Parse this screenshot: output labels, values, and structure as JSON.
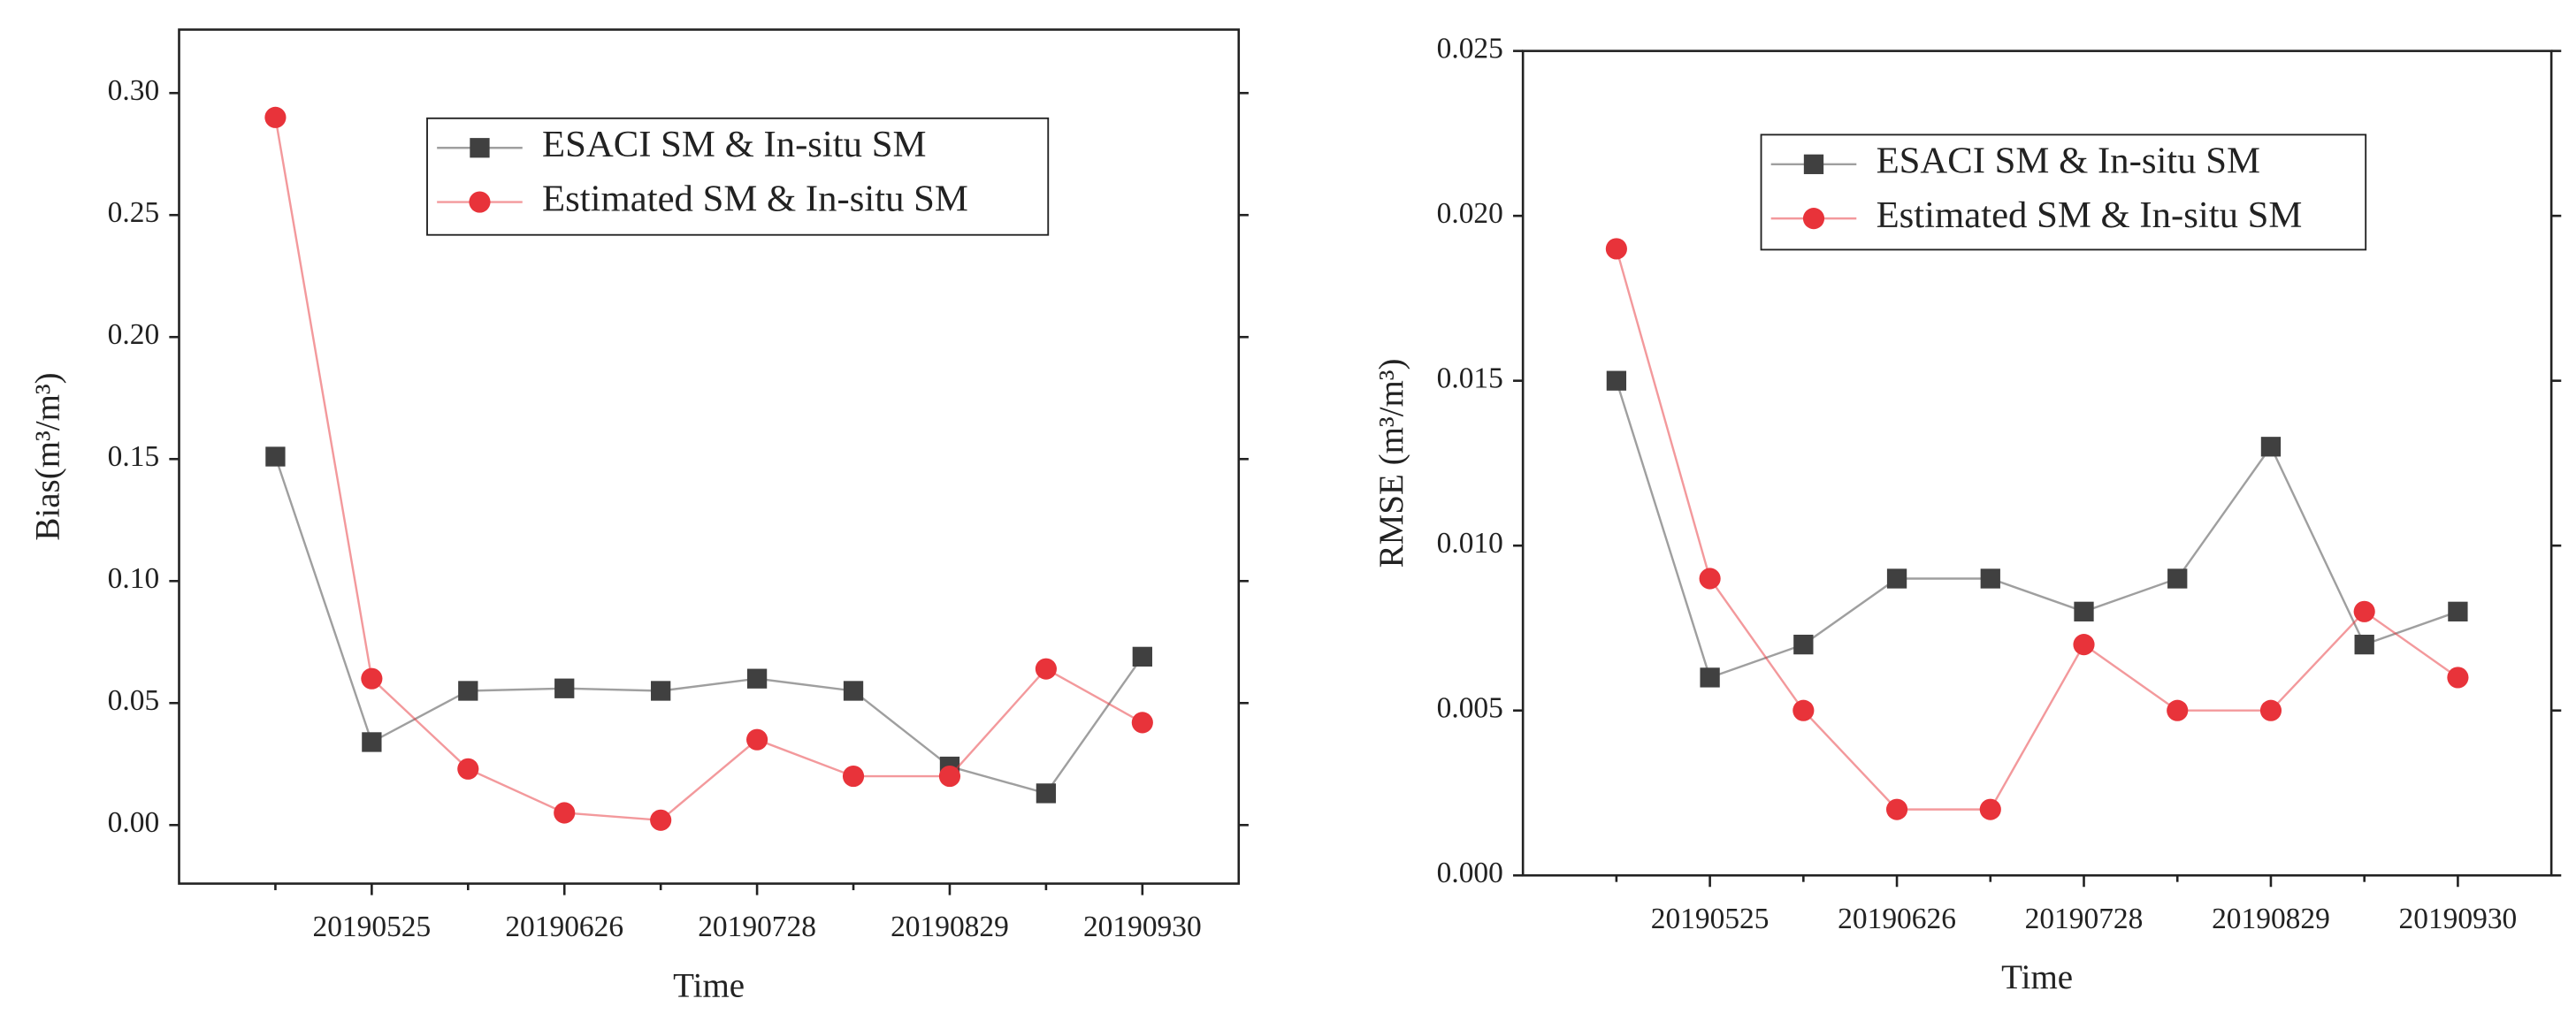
{
  "chart_data": [
    {
      "type": "line",
      "ylabel": "Bias(m³/m³)",
      "xlabel": "Time",
      "categories": [
        null,
        "20190525",
        null,
        "20190626",
        null,
        "20190728",
        null,
        "20190829",
        null,
        "20190930"
      ],
      "series": [
        {
          "name": "ESACI SM & In-situ SM",
          "color": "#404040",
          "marker": "square",
          "values": [
            0.151,
            0.034,
            0.055,
            0.056,
            0.055,
            0.06,
            0.055,
            0.024,
            0.013,
            0.069
          ]
        },
        {
          "name": "Estimated SM & In-situ SM",
          "color": "#e8333a",
          "marker": "circle",
          "values": [
            0.29,
            0.06,
            0.023,
            0.005,
            0.002,
            0.035,
            0.02,
            0.02,
            0.064,
            0.042
          ]
        }
      ],
      "ylim": [
        -0.024,
        0.326
      ],
      "yticks": [
        {
          "value": 0,
          "label": "0.00"
        },
        {
          "value": 0.05,
          "label": "0.05"
        },
        {
          "value": 0.1,
          "label": "0.10"
        },
        {
          "value": 0.15,
          "label": "0.15"
        },
        {
          "value": 0.2,
          "label": "0.20"
        },
        {
          "value": 0.25,
          "label": "0.25"
        },
        {
          "value": 0.3,
          "label": "0.30"
        }
      ],
      "legend": "top"
    },
    {
      "type": "line",
      "ylabel": "RMSE (m³/m³)",
      "xlabel": "Time",
      "categories": [
        null,
        "20190525",
        null,
        "20190626",
        null,
        "20190728",
        null,
        "20190829",
        null,
        "20190930"
      ],
      "series": [
        {
          "name": "ESACI SM & In-situ SM",
          "color": "#404040",
          "marker": "square",
          "values": [
            0.015,
            0.006,
            0.007,
            0.009,
            0.009,
            0.008,
            0.009,
            0.013,
            0.007,
            0.008
          ]
        },
        {
          "name": "Estimated SM & In-situ SM",
          "color": "#e8333a",
          "marker": "circle",
          "values": [
            0.019,
            0.009,
            0.005,
            0.002,
            0.002,
            0.007,
            0.005,
            0.005,
            0.008,
            0.006
          ]
        }
      ],
      "ylim": [
        0,
        0.025
      ],
      "yticks": [
        {
          "value": 0,
          "label": "0.000"
        },
        {
          "value": 0.005,
          "label": "0.005"
        },
        {
          "value": 0.01,
          "label": "0.010"
        },
        {
          "value": 0.015,
          "label": "0.015"
        },
        {
          "value": 0.02,
          "label": "0.020"
        },
        {
          "value": 0.025,
          "label": "0.025"
        }
      ],
      "legend": "top"
    }
  ]
}
